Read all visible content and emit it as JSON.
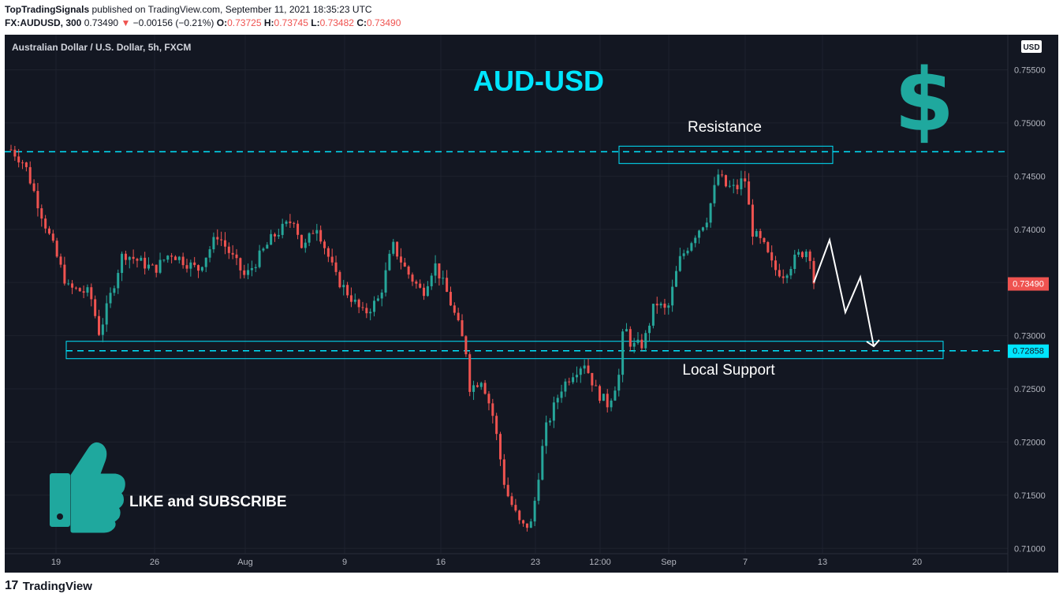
{
  "header": {
    "publisher": "TopTradingSignals",
    "published_text": "published on TradingView.com, September 11, 2021 18:35:23 UTC",
    "symbol": "FX:AUDUSD, 300",
    "last": "0.73490",
    "change_arrow": "▼",
    "change": "−0.00156 (−0.21%)",
    "open_label": "O:",
    "open": "0.73725",
    "high_label": "H:",
    "high": "0.73745",
    "low_label": "L:",
    "low": "0.73482",
    "close_label": "C:",
    "close": "0.73490"
  },
  "chart": {
    "instrument_label": "Australian Dollar / U.S. Dollar, 5h, FXCM",
    "currency_badge": "USD",
    "title": "AUD-USD",
    "dollar_icon": "dollar-sign-icon",
    "resistance_label": "Resistance",
    "support_label": "Local Support",
    "like_text": "LIKE and SUBSCRIBE",
    "like_icon": "thumbs-up-icon",
    "price_tag": "0.73490",
    "support_tag": "0.72858"
  },
  "chart_data": {
    "type": "candlestick",
    "ylim": [
      0.7095,
      0.7583
    ],
    "y_ticks": [
      "0.75500",
      "0.75000",
      "0.74500",
      "0.74000",
      "0.73500",
      "0.73000",
      "0.72500",
      "0.72000",
      "0.71500",
      "0.71000"
    ],
    "x_ticks": [
      {
        "label": "19",
        "pos": 0.065
      },
      {
        "label": "26",
        "pos": 0.19
      },
      {
        "label": "Aug",
        "pos": 0.305
      },
      {
        "label": "9",
        "pos": 0.431
      },
      {
        "label": "16",
        "pos": 0.553
      },
      {
        "label": "23",
        "pos": 0.673
      },
      {
        "label": "12:00",
        "pos": 0.755
      },
      {
        "label": "Sep",
        "pos": 0.842
      },
      {
        "label": "7",
        "pos": 0.939
      },
      {
        "label": "13",
        "pos": 1.037
      },
      {
        "label": "20",
        "pos": 1.157
      }
    ],
    "resistance_level": 0.7473,
    "support_level": 0.72858,
    "last_price": 0.7349,
    "projection": [
      {
        "pos": 1.026,
        "price": 0.735
      },
      {
        "pos": 1.046,
        "price": 0.739
      },
      {
        "pos": 1.066,
        "price": 0.7322
      },
      {
        "pos": 1.085,
        "price": 0.7355
      },
      {
        "pos": 1.102,
        "price": 0.729
      }
    ],
    "anchors": [
      {
        "pos": 0.008,
        "price": 0.7475
      },
      {
        "pos": 0.025,
        "price": 0.7462
      },
      {
        "pos": 0.045,
        "price": 0.7418
      },
      {
        "pos": 0.08,
        "price": 0.7345
      },
      {
        "pos": 0.108,
        "price": 0.734
      },
      {
        "pos": 0.12,
        "price": 0.7302
      },
      {
        "pos": 0.15,
        "price": 0.7378
      },
      {
        "pos": 0.19,
        "price": 0.7362
      },
      {
        "pos": 0.21,
        "price": 0.7378
      },
      {
        "pos": 0.245,
        "price": 0.7362
      },
      {
        "pos": 0.27,
        "price": 0.7395
      },
      {
        "pos": 0.305,
        "price": 0.7355
      },
      {
        "pos": 0.34,
        "price": 0.7393
      },
      {
        "pos": 0.367,
        "price": 0.741
      },
      {
        "pos": 0.378,
        "price": 0.738
      },
      {
        "pos": 0.395,
        "price": 0.7405
      },
      {
        "pos": 0.42,
        "price": 0.7355
      },
      {
        "pos": 0.455,
        "price": 0.732
      },
      {
        "pos": 0.475,
        "price": 0.7335
      },
      {
        "pos": 0.492,
        "price": 0.7385
      },
      {
        "pos": 0.51,
        "price": 0.736
      },
      {
        "pos": 0.53,
        "price": 0.734
      },
      {
        "pos": 0.545,
        "price": 0.7368
      },
      {
        "pos": 0.562,
        "price": 0.7338
      },
      {
        "pos": 0.575,
        "price": 0.731
      },
      {
        "pos": 0.585,
        "price": 0.7285
      },
      {
        "pos": 0.59,
        "price": 0.725
      },
      {
        "pos": 0.605,
        "price": 0.726
      },
      {
        "pos": 0.62,
        "price": 0.7222
      },
      {
        "pos": 0.635,
        "price": 0.7155
      },
      {
        "pos": 0.655,
        "price": 0.712
      },
      {
        "pos": 0.668,
        "price": 0.7123
      },
      {
        "pos": 0.675,
        "price": 0.716
      },
      {
        "pos": 0.685,
        "price": 0.721
      },
      {
        "pos": 0.705,
        "price": 0.725
      },
      {
        "pos": 0.72,
        "price": 0.7265
      },
      {
        "pos": 0.735,
        "price": 0.7275
      },
      {
        "pos": 0.75,
        "price": 0.7248
      },
      {
        "pos": 0.765,
        "price": 0.7235
      },
      {
        "pos": 0.78,
        "price": 0.7265
      },
      {
        "pos": 0.785,
        "price": 0.7312
      },
      {
        "pos": 0.795,
        "price": 0.729
      },
      {
        "pos": 0.81,
        "price": 0.7292
      },
      {
        "pos": 0.825,
        "price": 0.7332
      },
      {
        "pos": 0.84,
        "price": 0.7322
      },
      {
        "pos": 0.855,
        "price": 0.737
      },
      {
        "pos": 0.875,
        "price": 0.7395
      },
      {
        "pos": 0.89,
        "price": 0.741
      },
      {
        "pos": 0.905,
        "price": 0.7452
      },
      {
        "pos": 0.915,
        "price": 0.744
      },
      {
        "pos": 0.928,
        "price": 0.7438
      },
      {
        "pos": 0.938,
        "price": 0.745
      },
      {
        "pos": 0.948,
        "price": 0.7398
      },
      {
        "pos": 0.962,
        "price": 0.7385
      },
      {
        "pos": 0.975,
        "price": 0.7363
      },
      {
        "pos": 0.988,
        "price": 0.7358
      },
      {
        "pos": 1.005,
        "price": 0.7375
      },
      {
        "pos": 1.02,
        "price": 0.7382
      },
      {
        "pos": 1.026,
        "price": 0.7349
      }
    ]
  },
  "footer": {
    "logo_mark": "17",
    "brand": "TradingView"
  },
  "colors": {
    "bg": "#131722",
    "up": "#26a69a",
    "down": "#ef5350",
    "cyan": "#00e5ff",
    "teal": "#1fa89e",
    "grid": "#1e222d",
    "axis_text": "#b2b5be"
  }
}
